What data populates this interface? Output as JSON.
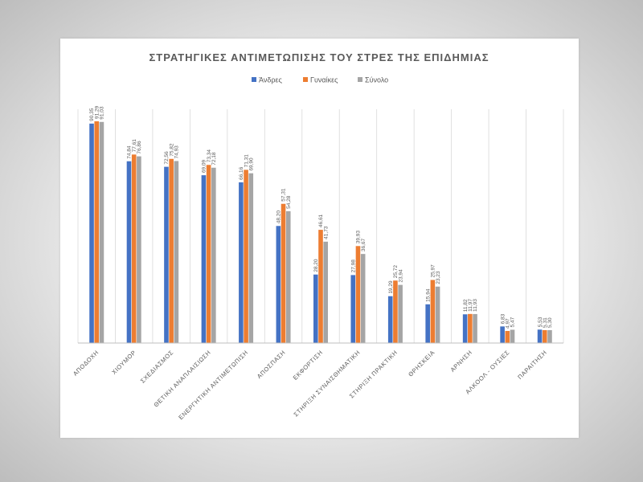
{
  "chart_data": {
    "type": "bar",
    "title": "ΣΤΡΑΤΗΓΙΚΕΣ ΑΝΤΙΜΕΤΩΠΙΣΗΣ ΤΟΥ ΣΤΡΕΣ ΤΗΣ ΕΠΙΔΗΜΙΑΣ",
    "legend_position": "top",
    "ylim": [
      0,
      100
    ],
    "grid": "vertical-category-separators",
    "categories": [
      "ΑΠΟΔΟΧΗ",
      "ΧΙΟΥΜΟΡ",
      "ΣΧΕΔΙΑΣΜΟΣ",
      "ΘΕΤΙΚΗ ΑΝΑΠΛΑΙΣΙΩΣΗ",
      "ΕΝΕΡΓΗΤΙΚΗ ΑΝΤΙΜΕΤΩΠΙΣΗ",
      "ΑΠΟΣΠΑΣΗ",
      "ΕΚΦΟΡΤΙΣΗ",
      "ΣΤΗΡΙΞΗ ΣΥΝΑΙΣΘΗΜΑΤΙΚΗ",
      "ΣΤΗΡΙΞΗ ΠΡΑΚΤΙΚΗ",
      "ΘΡΗΣΚΕΙΑ",
      "ΑΡΝΗΣΗ",
      "ΑΛΚΟΟΛ - ΟΥΣΙΕΣ",
      "ΠΑΡΑΙΤΗΣΗ"
    ],
    "series": [
      {
        "name": "Άνδρες",
        "color": "#4472C4",
        "values": [
          90.35,
          74.84,
          72.56,
          69.09,
          66.16,
          48.2,
          28.2,
          27.98,
          19.29,
          15.94,
          11.82,
          6.83,
          5.53
        ],
        "labels": [
          "90,35",
          "74,84",
          "72,56",
          "69,09",
          "66,16",
          "48,20",
          "28,20",
          "27,98",
          "19,29",
          "15,94",
          "11,82",
          "6,83",
          "5,53"
        ]
      },
      {
        "name": "Γυναίκες",
        "color": "#ED7D31",
        "values": [
          91.29,
          77.61,
          75.82,
          73.34,
          71.31,
          57.31,
          46.61,
          39.93,
          25.72,
          25.97,
          11.97,
          4.97,
          5.31
        ],
        "labels": [
          "91,29",
          "77,61",
          "75,82",
          "73,34",
          "71,31",
          "57,31",
          "46,61",
          "39,93",
          "25,72",
          "25,97",
          "11,97",
          "4,97",
          "5,31"
        ]
      },
      {
        "name": "Σύνολο",
        "color": "#A5A5A5",
        "values": [
          91.03,
          76.86,
          74.93,
          72.18,
          69.9,
          54.28,
          41.73,
          36.67,
          23.94,
          23.23,
          11.93,
          5.47,
          5.3
        ],
        "labels": [
          "91,03",
          "76,86",
          "74,93",
          "72,18",
          "69,90",
          "54,28",
          "41,73",
          "36,67",
          "23,94",
          "23,23",
          "11,93",
          "5,47",
          "5,30"
        ]
      }
    ]
  }
}
